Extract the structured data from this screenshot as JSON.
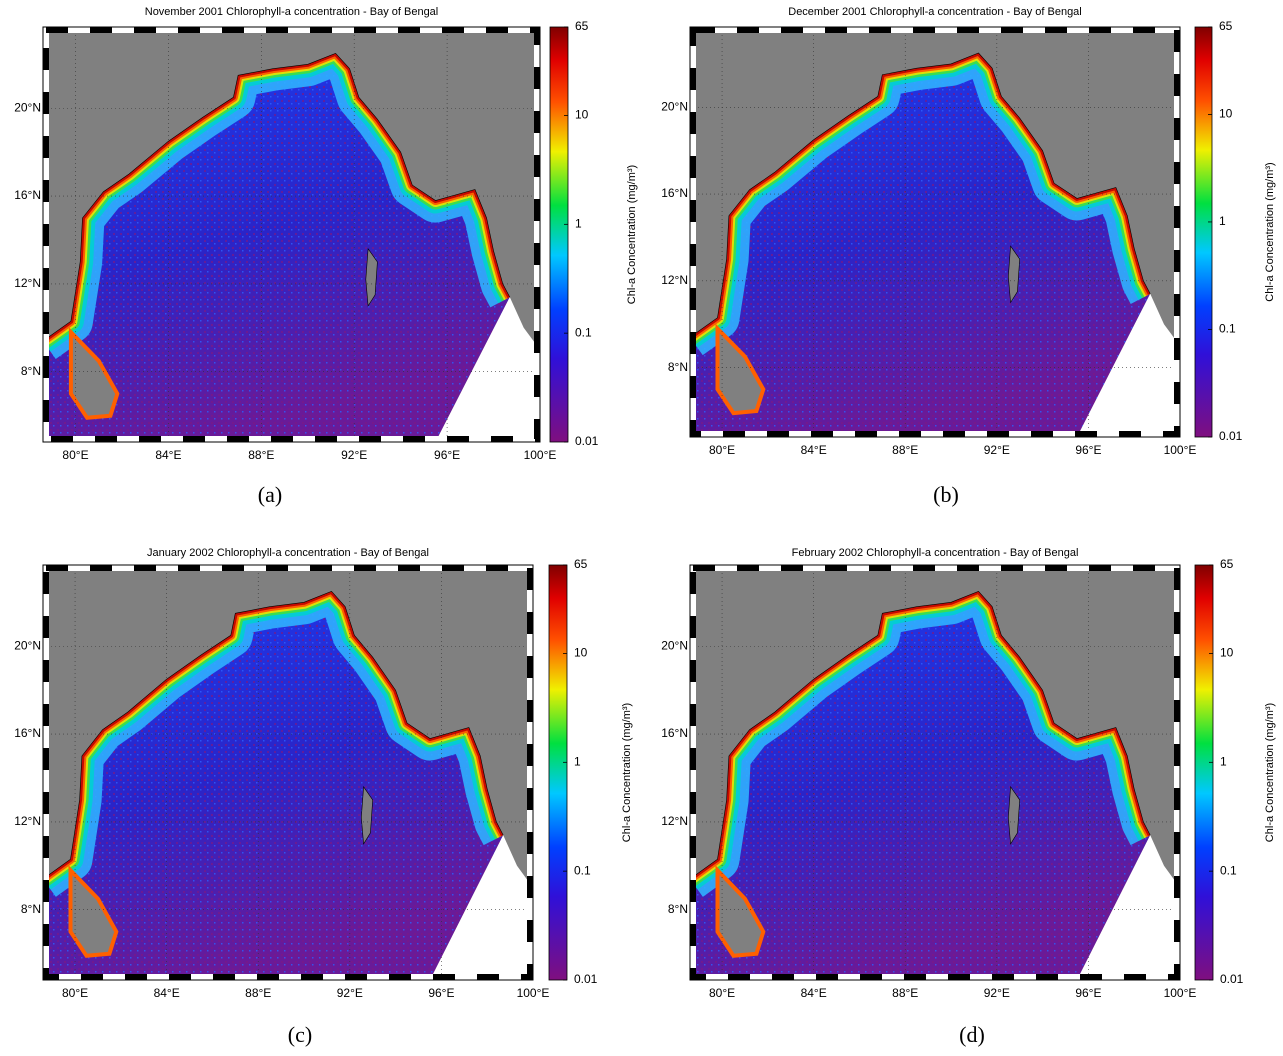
{
  "panels": [
    {
      "title": "November 2001 Chlorophyll-a concentration - Bay of Bengal",
      "caption": "(a)"
    },
    {
      "title": "December 2001 Chlorophyll-a concentration - Bay of Bengal",
      "caption": "(b)"
    },
    {
      "title": "January 2002 Chlorophyll-a concentration - Bay of Bengal",
      "caption": "(c)"
    },
    {
      "title": "February 2002 Chlorophyll-a concentration - Bay of Bengal",
      "caption": "(d)"
    }
  ],
  "map": {
    "lonlim": [
      78.6,
      100
    ],
    "latlim": [
      4.8,
      23.7
    ],
    "lon_ticks": [
      {
        "value": 80,
        "label": "80°E"
      },
      {
        "value": 84,
        "label": "84°E"
      },
      {
        "value": 88,
        "label": "88°E"
      },
      {
        "value": 92,
        "label": "92°E"
      },
      {
        "value": 96,
        "label": "96°E"
      },
      {
        "value": 100,
        "label": "100°E"
      }
    ],
    "lat_ticks": [
      {
        "value": 8,
        "label": "8°N"
      },
      {
        "value": 12,
        "label": "12°N"
      },
      {
        "value": 16,
        "label": "16°N"
      },
      {
        "value": 20,
        "label": "20°N"
      }
    ]
  },
  "colorbar": {
    "label": "Chl-a Concentration (mg/m³)",
    "scale": "log",
    "lim": [
      0.01,
      65
    ],
    "ticks": [
      0.01,
      0.1,
      1,
      10,
      65
    ]
  }
}
